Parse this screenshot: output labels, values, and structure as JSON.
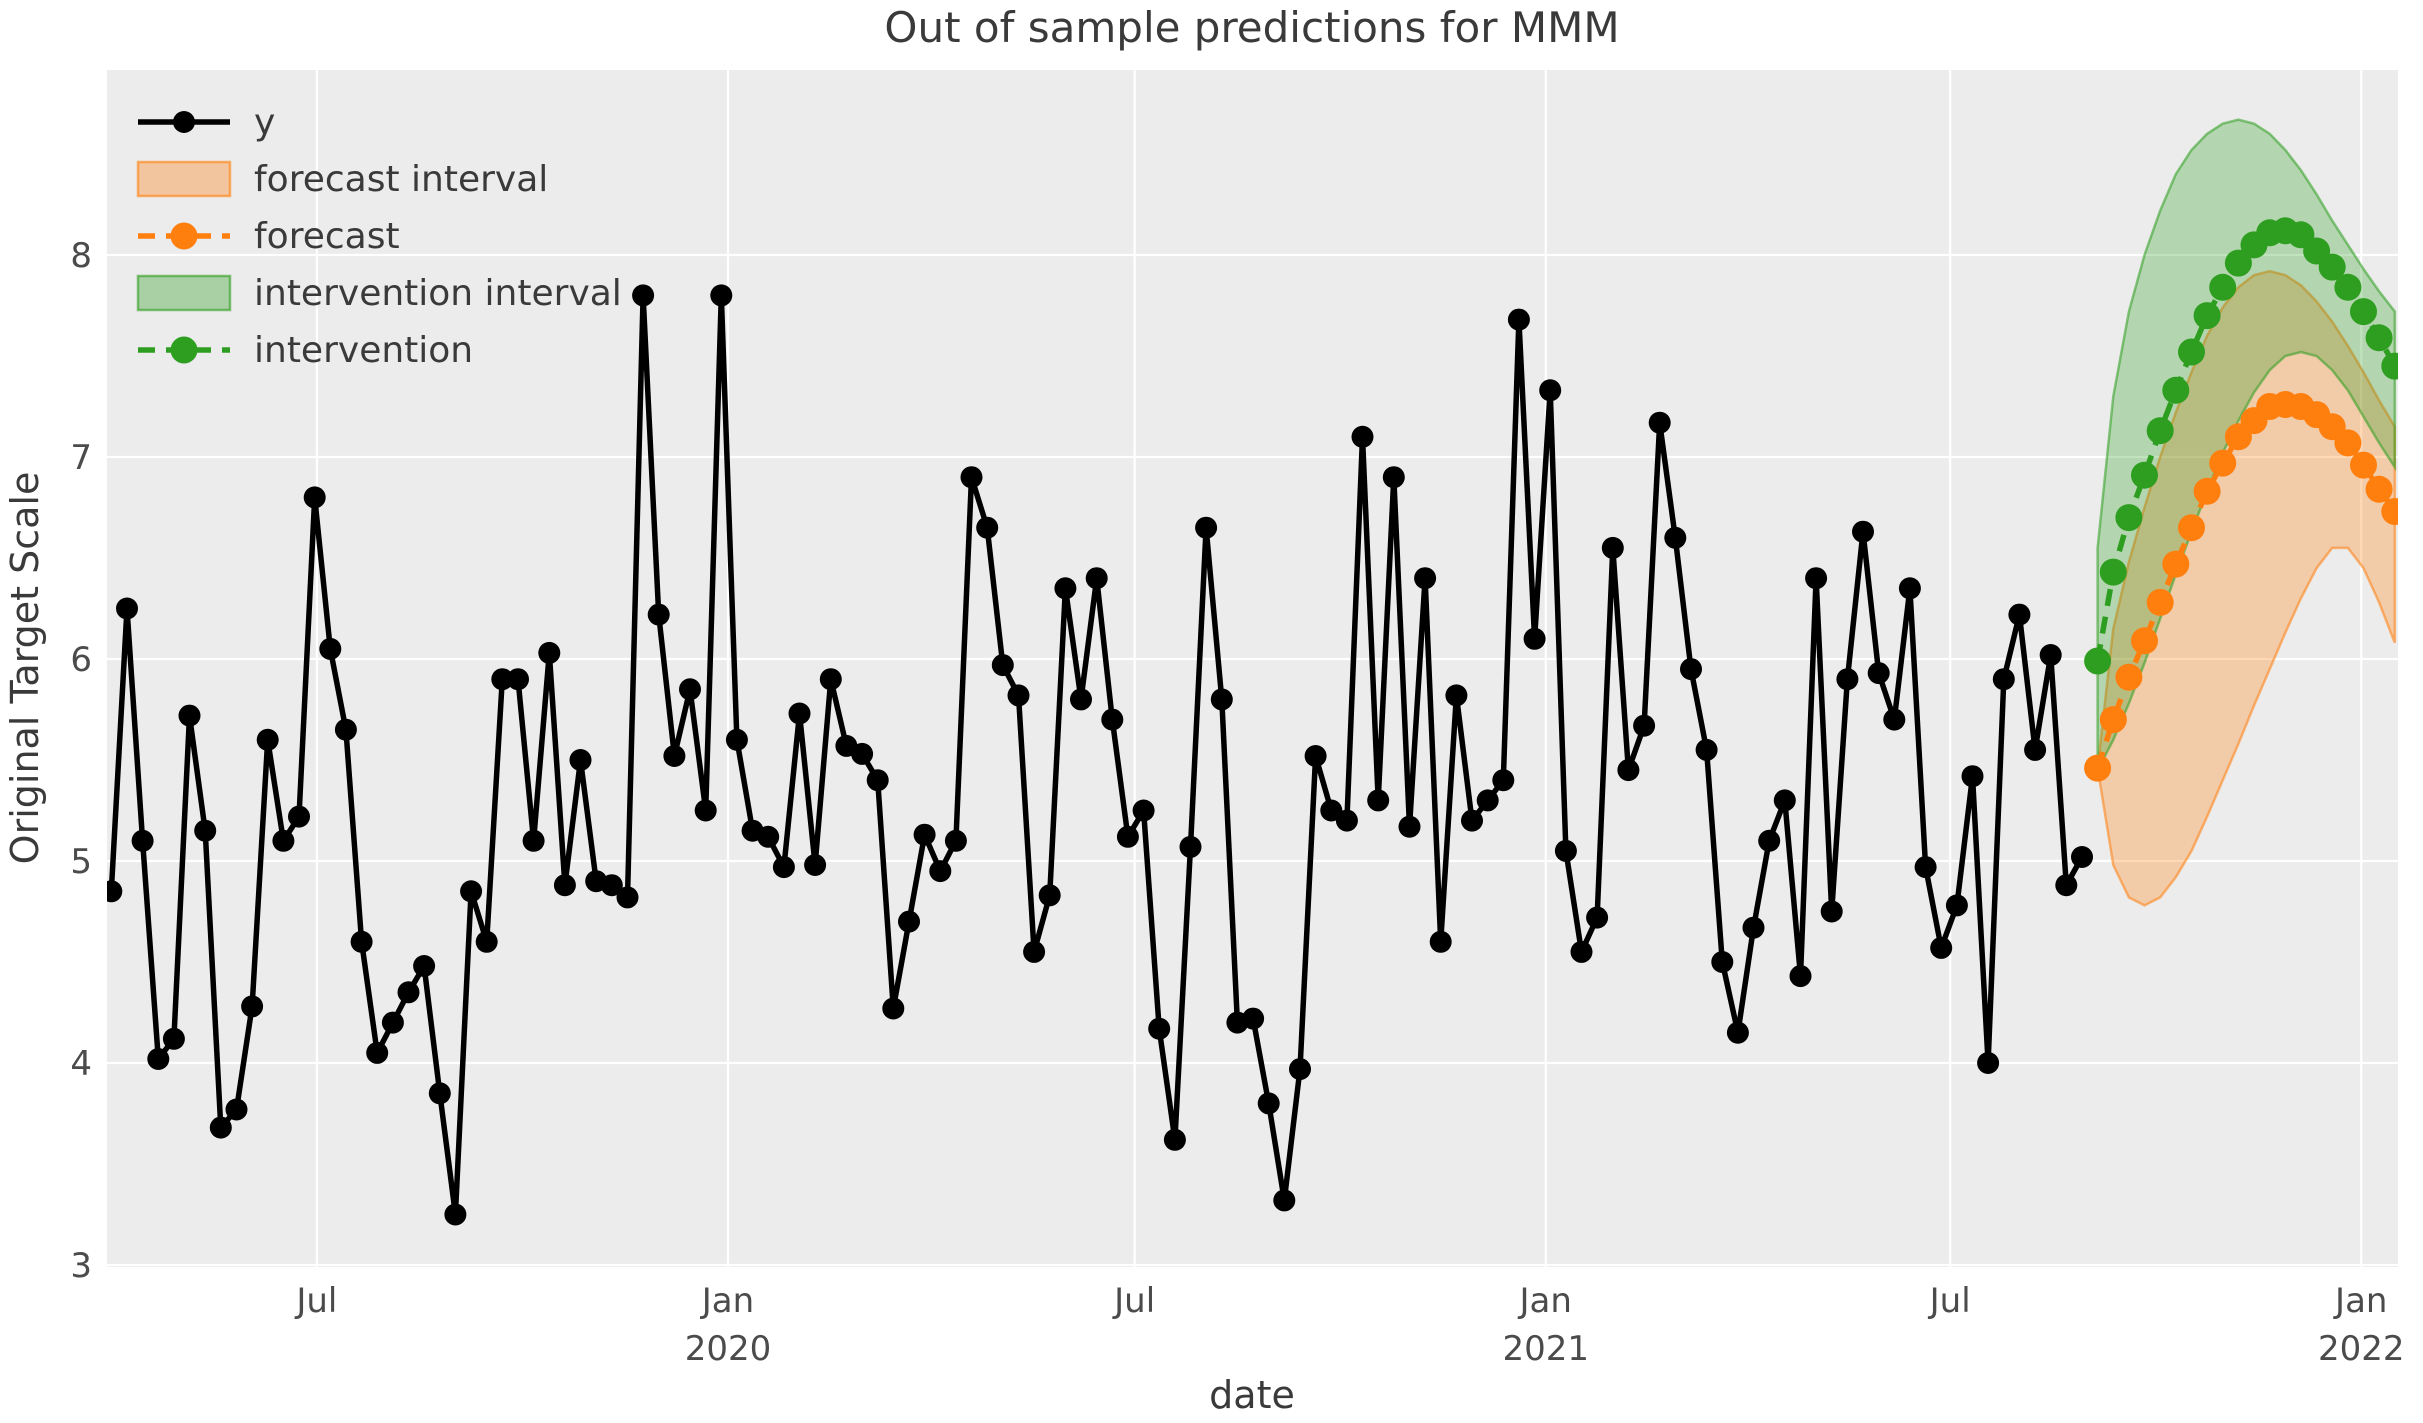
{
  "title": "Out of sample predictions for MMM",
  "axes": {
    "xlabel": "date",
    "ylabel": "Original Target Scale",
    "yticks": [
      "3",
      "4",
      "5",
      "6",
      "7",
      "8"
    ],
    "xticks": [
      {
        "line1": "Jul",
        "line2": "",
        "date": "2019-07-01"
      },
      {
        "line1": "Jan",
        "line2": "2020",
        "date": "2020-01-01"
      },
      {
        "line1": "Jul",
        "line2": "",
        "date": "2020-07-01"
      },
      {
        "line1": "Jan",
        "line2": "2021",
        "date": "2021-01-01"
      },
      {
        "line1": "Jul",
        "line2": "",
        "date": "2021-07-01"
      },
      {
        "line1": "Jan",
        "line2": "2022",
        "date": "2022-01-01"
      }
    ]
  },
  "colors": {
    "figure_bg": "#ffffff",
    "plot_bg": "#ececec",
    "grid": "#ffffff",
    "text": "#3a3a3a",
    "tick_text": "#4b4b4b",
    "y_series": "#000000",
    "forecast": "#ff7f0e",
    "intervention": "#2e9e20",
    "band_fill_alpha": 0.3,
    "band_edge_alpha": 0.55
  },
  "legend": [
    {
      "label": "y",
      "swatch": "line-marker",
      "color": "#000000"
    },
    {
      "label": "forecast interval",
      "swatch": "patch",
      "color": "#ff7f0e"
    },
    {
      "label": "forecast",
      "swatch": "dash-marker",
      "color": "#ff7f0e"
    },
    {
      "label": "intervention interval",
      "swatch": "patch",
      "color": "#2e9e20"
    },
    {
      "label": "intervention",
      "swatch": "dash-marker",
      "color": "#2e9e20"
    }
  ],
  "chart_data": {
    "type": "line",
    "title": "Out of sample predictions for MMM",
    "xlabel": "date",
    "ylabel": "Original Target Scale",
    "ylim": [
      3,
      8.9
    ],
    "grid": true,
    "legend_position": "upper left",
    "x_tick_labels": [
      "Jul",
      "Jan 2020",
      "Jul",
      "Jan 2021",
      "Jul",
      "Jan 2022"
    ],
    "series": [
      {
        "name": "y",
        "type": "line+marker",
        "style": "solid",
        "color": "#000000",
        "start_date": "2019-03-31",
        "freq_days": 7,
        "values": [
          4.85,
          6.25,
          5.1,
          4.02,
          4.12,
          5.72,
          5.15,
          3.68,
          3.77,
          4.28,
          5.6,
          5.1,
          5.22,
          6.8,
          6.05,
          5.65,
          4.6,
          4.05,
          4.2,
          4.35,
          4.48,
          3.85,
          3.25,
          4.85,
          4.6,
          5.9,
          5.9,
          5.1,
          6.03,
          4.88,
          5.5,
          4.9,
          4.88,
          4.82,
          7.8,
          6.22,
          5.52,
          5.85,
          5.25,
          7.8,
          5.6,
          5.15,
          5.12,
          4.97,
          5.73,
          4.98,
          5.9,
          5.57,
          5.53,
          5.4,
          4.27,
          4.7,
          5.13,
          4.95,
          5.1,
          6.9,
          6.65,
          5.97,
          5.82,
          4.55,
          4.83,
          6.35,
          5.8,
          6.4,
          5.7,
          5.12,
          5.25,
          4.17,
          3.62,
          5.07,
          6.65,
          5.8,
          4.2,
          4.22,
          3.8,
          3.32,
          3.97,
          5.52,
          5.25,
          5.2,
          7.1,
          5.3,
          6.9,
          5.17,
          6.4,
          4.6,
          5.82,
          5.2,
          5.3,
          5.4,
          7.68,
          6.1,
          7.33,
          5.05,
          4.55,
          4.72,
          6.55,
          5.45,
          5.67,
          7.17,
          6.6,
          5.95,
          5.55,
          4.5,
          4.15,
          4.67,
          5.1,
          5.3,
          4.43,
          6.4,
          4.75,
          5.9,
          6.63,
          5.93,
          5.7,
          6.35,
          4.97,
          4.57,
          4.78,
          5.42,
          4.0,
          5.9,
          6.22,
          5.55,
          6.02,
          4.88,
          5.02
        ]
      },
      {
        "name": "forecast",
        "type": "line+marker",
        "style": "dashed",
        "color": "#ff7f0e",
        "start_date": "2021-09-05",
        "freq_days": 7,
        "values": [
          5.46,
          5.7,
          5.91,
          6.09,
          6.28,
          6.47,
          6.65,
          6.83,
          6.97,
          7.1,
          7.18,
          7.25,
          7.26,
          7.25,
          7.21,
          7.15,
          7.07,
          6.96,
          6.84,
          6.73
        ]
      },
      {
        "name": "intervention",
        "type": "line+marker",
        "style": "dashed",
        "color": "#2e9e20",
        "start_date": "2021-09-05",
        "freq_days": 7,
        "values": [
          5.99,
          6.43,
          6.7,
          6.91,
          7.13,
          7.33,
          7.52,
          7.7,
          7.84,
          7.96,
          8.05,
          8.11,
          8.12,
          8.1,
          8.02,
          7.94,
          7.84,
          7.72,
          7.59,
          7.45
        ]
      },
      {
        "name": "forecast interval",
        "type": "band",
        "color": "#ff7f0e",
        "start_date": "2021-09-05",
        "freq_days": 7,
        "lower": [
          5.46,
          4.98,
          4.82,
          4.78,
          4.82,
          4.92,
          5.05,
          5.22,
          5.4,
          5.58,
          5.77,
          5.95,
          6.13,
          6.3,
          6.45,
          6.55,
          6.55,
          6.45,
          6.28,
          6.08
        ],
        "upper": [
          5.46,
          6.15,
          6.48,
          6.75,
          7.0,
          7.22,
          7.42,
          7.6,
          7.74,
          7.84,
          7.9,
          7.92,
          7.9,
          7.85,
          7.77,
          7.67,
          7.55,
          7.42,
          7.28,
          7.15
        ]
      },
      {
        "name": "intervention interval",
        "type": "band",
        "color": "#2e9e20",
        "start_date": "2021-09-05",
        "freq_days": 7,
        "lower": [
          5.45,
          5.6,
          5.78,
          5.98,
          6.2,
          6.42,
          6.63,
          6.83,
          7.02,
          7.18,
          7.32,
          7.43,
          7.5,
          7.52,
          7.5,
          7.43,
          7.33,
          7.2,
          7.07,
          6.95
        ],
        "upper": [
          6.55,
          7.3,
          7.72,
          8.0,
          8.22,
          8.4,
          8.52,
          8.6,
          8.65,
          8.67,
          8.65,
          8.6,
          8.52,
          8.42,
          8.3,
          8.17,
          8.05,
          7.93,
          7.82,
          7.72
        ]
      }
    ]
  }
}
